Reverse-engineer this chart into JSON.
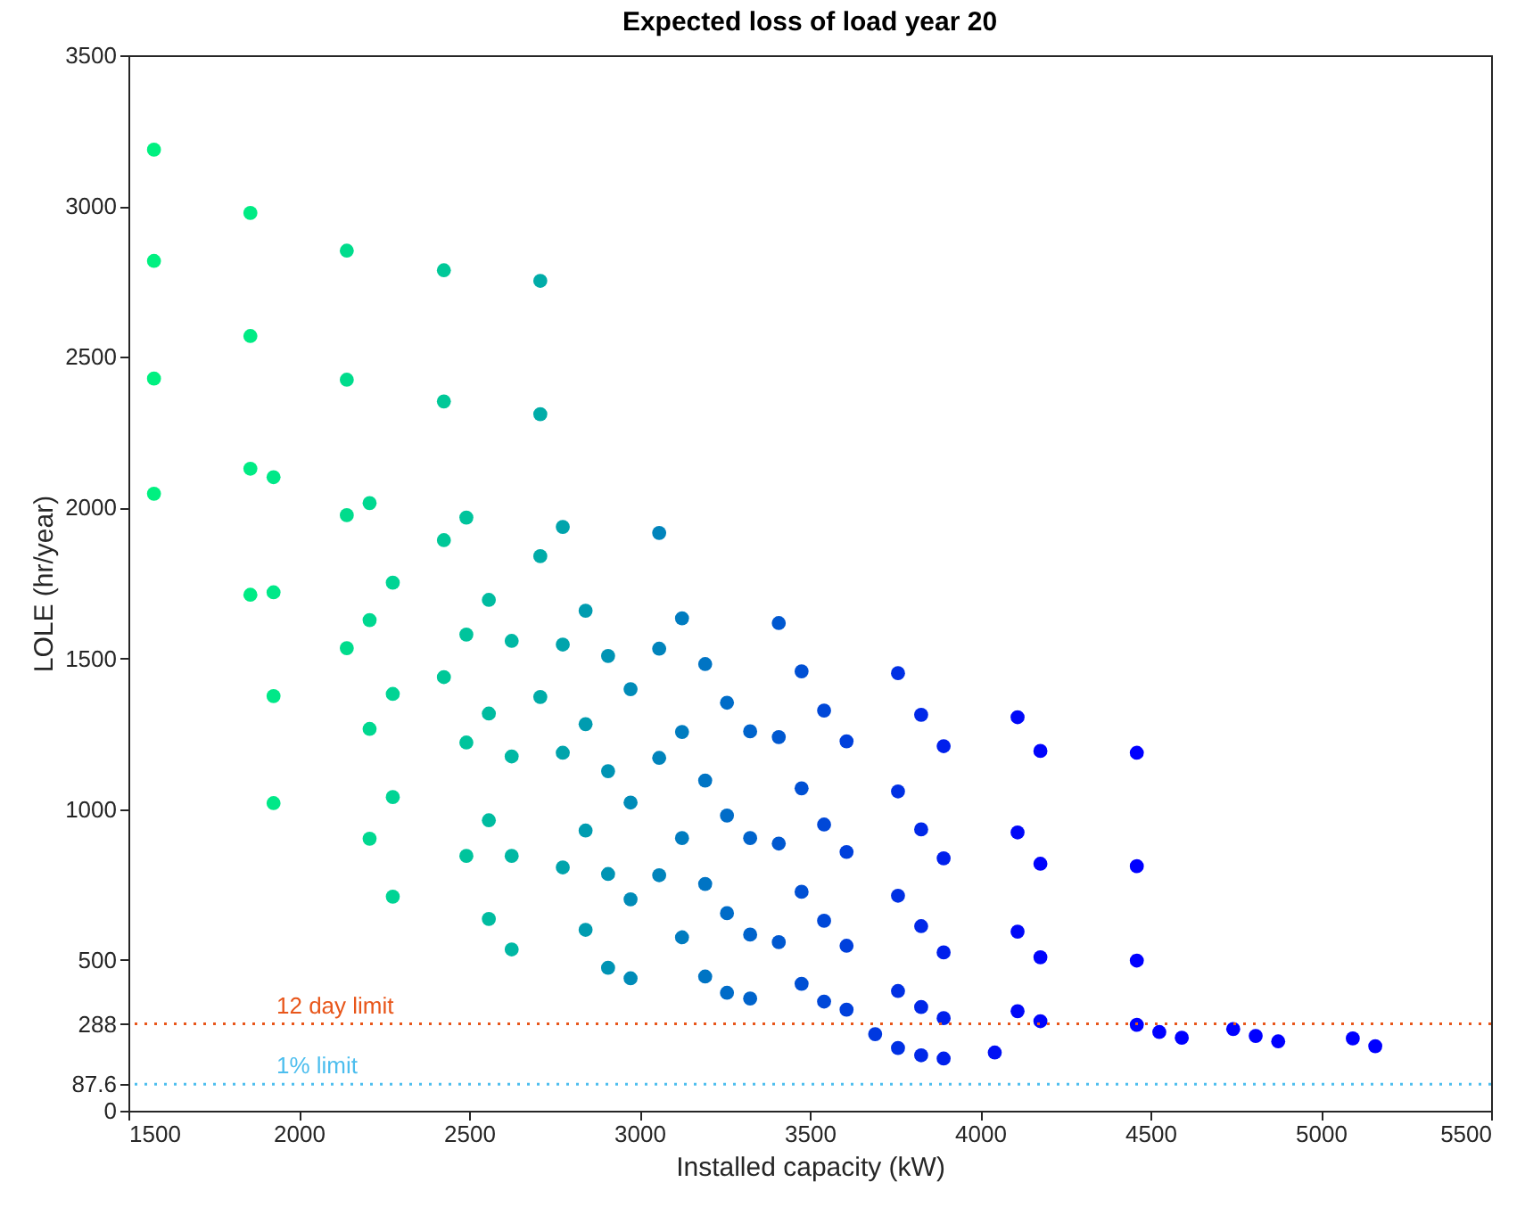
{
  "chart_data": {
    "type": "scatter",
    "title": "Expected loss of load year 20",
    "xlabel": "Installed capacity (kW)",
    "ylabel": "LOLE (hr/year)",
    "xlim": [
      1500,
      5500
    ],
    "xticks": [
      1500,
      2000,
      2500,
      3000,
      3500,
      4000,
      4500,
      5000,
      5500
    ],
    "ylim": [
      0,
      3500
    ],
    "yticks": [
      0,
      87.6,
      288,
      500,
      1000,
      1500,
      2000,
      2500,
      3000,
      3500
    ],
    "grid": false,
    "legend": false,
    "marker": "circle",
    "ref_lines": [
      {
        "axis": "y",
        "value": 288,
        "label": "12 day limit",
        "color": "#e8561a",
        "line_style": "dotted"
      },
      {
        "axis": "y",
        "value": 87.6,
        "label": "1% limit",
        "color": "#4dbeee",
        "line_style": "dotted"
      }
    ],
    "series": [
      {
        "color": "#00f080",
        "x": [
          1575,
          1575,
          1575,
          1575
        ],
        "values": [
          3187,
          2818,
          2428,
          2046
        ]
      },
      {
        "color": "#00eb84",
        "x": [
          1858,
          1858,
          1858,
          1858
        ],
        "values": [
          2977,
          2569,
          2129,
          1711
        ]
      },
      {
        "color": "#00e888",
        "x": [
          1926,
          1926,
          1926,
          1926
        ],
        "values": [
          2101,
          1719,
          1375,
          1020
        ]
      },
      {
        "color": "#00dc8c",
        "x": [
          2141,
          2141,
          2141,
          2141
        ],
        "values": [
          2852,
          2424,
          1975,
          1534
        ]
      },
      {
        "color": "#00d890",
        "x": [
          2208,
          2208,
          2208,
          2208
        ],
        "values": [
          2015,
          1627,
          1266,
          902
        ]
      },
      {
        "color": "#00d494",
        "x": [
          2276,
          2276,
          2276,
          2276
        ],
        "values": [
          1751,
          1382,
          1040,
          710
        ]
      },
      {
        "color": "#00c898",
        "x": [
          2426,
          2426,
          2426,
          2426
        ],
        "values": [
          2787,
          2352,
          1892,
          1438
        ]
      },
      {
        "color": "#00c49c",
        "x": [
          2492,
          2492,
          2492,
          2492
        ],
        "values": [
          1967,
          1579,
          1221,
          845
        ]
      },
      {
        "color": "#00bca0",
        "x": [
          2558,
          2558,
          2558,
          2558
        ],
        "values": [
          1694,
          1317,
          963,
          636
        ]
      },
      {
        "color": "#00b8a4",
        "x": [
          2625,
          2625,
          2625,
          2625
        ],
        "values": [
          1558,
          1175,
          845,
          535
        ]
      },
      {
        "color": "#00aca8",
        "x": [
          2709,
          2709,
          2709,
          2709
        ],
        "values": [
          2752,
          2310,
          1839,
          1372
        ]
      },
      {
        "color": "#00a4ac",
        "x": [
          2775,
          2775,
          2775,
          2775
        ],
        "values": [
          1936,
          1546,
          1187,
          807
        ]
      },
      {
        "color": "#009cb0",
        "x": [
          2842,
          2842,
          2842,
          2842
        ],
        "values": [
          1658,
          1282,
          929,
          600
        ]
      },
      {
        "color": "#0094b4",
        "x": [
          2908,
          2908,
          2908,
          2908
        ],
        "values": [
          1508,
          1126,
          785,
          474
        ]
      },
      {
        "color": "#008cb8",
        "x": [
          2974,
          2974,
          2974,
          2974
        ],
        "values": [
          1398,
          1022,
          701,
          439
        ]
      },
      {
        "color": "#0084bc",
        "x": [
          3058,
          3058,
          3058,
          3058
        ],
        "values": [
          1916,
          1532,
          1170,
          781
        ]
      },
      {
        "color": "#007cc0",
        "x": [
          3125,
          3125,
          3125,
          3125
        ],
        "values": [
          1633,
          1256,
          904,
          575
        ]
      },
      {
        "color": "#0074c4",
        "x": [
          3193,
          3193,
          3193,
          3193
        ],
        "values": [
          1481,
          1095,
          752,
          445
        ]
      },
      {
        "color": "#006cc8",
        "x": [
          3257,
          3257,
          3257,
          3257
        ],
        "values": [
          1353,
          979,
          655,
          391
        ]
      },
      {
        "color": "#0064cc",
        "x": [
          3325,
          3325,
          3325,
          3325
        ],
        "values": [
          1258,
          904,
          584,
          372
        ]
      },
      {
        "color": "#0058d0",
        "x": [
          3409,
          3409,
          3409,
          3409
        ],
        "values": [
          1617,
          1239,
          886,
          559
        ]
      },
      {
        "color": "#0050d4",
        "x": [
          3476,
          3476,
          3476,
          3476
        ],
        "values": [
          1457,
          1069,
          726,
          421
        ]
      },
      {
        "color": "#0048d8",
        "x": [
          3542,
          3542,
          3542,
          3542
        ],
        "values": [
          1327,
          949,
          630,
          362
        ]
      },
      {
        "color": "#0040dc",
        "x": [
          3608,
          3608,
          3608,
          3608
        ],
        "values": [
          1225,
          858,
          547,
          335
        ]
      },
      {
        "color": "#0038e0",
        "x": [
          3692
        ],
        "values": [
          254
        ]
      },
      {
        "color": "#0030e4",
        "x": [
          3759,
          3759,
          3759,
          3759,
          3759
        ],
        "values": [
          1451,
          1059,
          713,
          397,
          208
        ]
      },
      {
        "color": "#0028e8",
        "x": [
          3827,
          3827,
          3827,
          3827,
          3827
        ],
        "values": [
          1313,
          933,
          612,
          344,
          184
        ]
      },
      {
        "color": "#0020ec",
        "x": [
          3893,
          3893,
          3893,
          3893,
          3893
        ],
        "values": [
          1209,
          837,
          525,
          307,
          173
        ]
      },
      {
        "color": "#0010f4",
        "x": [
          4043
        ],
        "values": [
          193
        ]
      },
      {
        "color": "#0008f8",
        "x": [
          4110,
          4110,
          4110,
          4110
        ],
        "values": [
          1305,
          923,
          594,
          330
        ]
      },
      {
        "color": "#0004fc",
        "x": [
          4177,
          4177,
          4177,
          4177
        ],
        "values": [
          1193,
          819,
          509,
          297
        ]
      },
      {
        "color": "#0000ff",
        "x": [
          4460,
          4460,
          4460,
          4460,
          4526,
          4592,
          4743,
          4809,
          4875,
          5094,
          5160
        ],
        "values": [
          1187,
          811,
          498,
          285,
          261,
          242,
          271,
          248,
          230,
          240,
          214
        ]
      }
    ]
  }
}
